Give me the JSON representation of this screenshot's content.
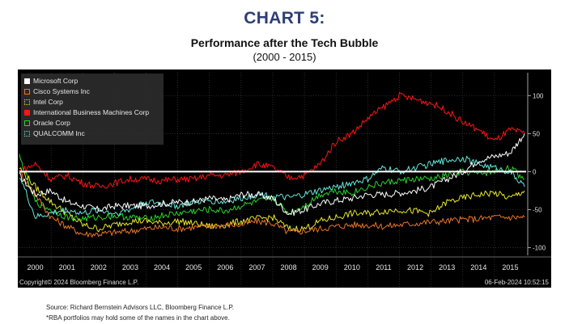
{
  "heading": "CHART 5:",
  "chart_data": {
    "type": "line",
    "title": "Performance after the Tech Bubble",
    "subtitle": "(2000 - 2015)",
    "xlabel": "",
    "ylabel": "",
    "x_tick_labels": [
      "2000",
      "2001",
      "2002",
      "2003",
      "2004",
      "2005",
      "2006",
      "2007",
      "2008",
      "2009",
      "2010",
      "2011",
      "2012",
      "2013",
      "2014",
      "2015"
    ],
    "y_ticks": [
      100,
      50,
      0,
      -50,
      -100
    ],
    "y_tick_labels": [
      "100",
      "50",
      "0",
      "-50",
      "-100"
    ],
    "ylim": [
      -110,
      130
    ],
    "xlim": [
      2000,
      2016
    ],
    "grid": true,
    "legend_position": "top-left",
    "copyright": "Copyright© 2024 Bloomberg Finance L.P.",
    "timestamp": "06-Feb-2024 10:52:15",
    "x_years": [
      2000.0,
      2000.5,
      2001.0,
      2001.5,
      2002.0,
      2002.5,
      2003.0,
      2003.5,
      2004.0,
      2004.5,
      2005.0,
      2005.5,
      2006.0,
      2006.5,
      2007.0,
      2007.5,
      2008.0,
      2008.5,
      2009.0,
      2009.5,
      2010.0,
      2010.5,
      2011.0,
      2011.5,
      2012.0,
      2012.5,
      2013.0,
      2013.5,
      2014.0,
      2014.5,
      2015.0,
      2015.5,
      2015.95
    ],
    "series": [
      {
        "name": "Microsoft Corp",
        "color": "#ffffff",
        "swatch_style": "solid",
        "values": [
          -5,
          -30,
          -25,
          -40,
          -45,
          -50,
          -45,
          -45,
          -45,
          -42,
          -40,
          -40,
          -35,
          -38,
          -30,
          -30,
          -35,
          -55,
          -50,
          -42,
          -38,
          -35,
          -30,
          -30,
          -28,
          -25,
          -20,
          -10,
          0,
          15,
          20,
          25,
          50
        ]
      },
      {
        "name": "Cisco Systems Inc",
        "color": "#e8742a",
        "swatch_style": "outline",
        "values": [
          0,
          -30,
          -60,
          -72,
          -82,
          -82,
          -80,
          -78,
          -75,
          -73,
          -75,
          -73,
          -72,
          -70,
          -70,
          -65,
          -68,
          -80,
          -78,
          -75,
          -72,
          -70,
          -70,
          -72,
          -70,
          -68,
          -66,
          -65,
          -63,
          -62,
          -60,
          -60,
          -60
        ]
      },
      {
        "name": "Intel Corp",
        "color": "#e6e62c",
        "swatch_style": "dotted",
        "values": [
          5,
          -20,
          -40,
          -55,
          -70,
          -75,
          -70,
          -65,
          -65,
          -68,
          -65,
          -68,
          -72,
          -70,
          -65,
          -62,
          -60,
          -75,
          -75,
          -65,
          -60,
          -55,
          -55,
          -52,
          -50,
          -52,
          -55,
          -40,
          -35,
          -30,
          -28,
          -35,
          -25
        ]
      },
      {
        "name": "International Business Machines Corp",
        "color": "#ff1414",
        "swatch_style": "solid",
        "values": [
          0,
          10,
          -10,
          -5,
          -15,
          -20,
          -15,
          -10,
          -10,
          -12,
          -10,
          -10,
          -5,
          -5,
          0,
          10,
          5,
          -8,
          -5,
          10,
          40,
          50,
          70,
          85,
          100,
          95,
          90,
          80,
          65,
          55,
          40,
          55,
          50
        ]
      },
      {
        "name": "Oracle Corp",
        "color": "#28d228",
        "swatch_style": "outline",
        "values": [
          20,
          -40,
          -50,
          -60,
          -62,
          -60,
          -58,
          -60,
          -62,
          -58,
          -55,
          -52,
          -50,
          -52,
          -45,
          -40,
          -35,
          -55,
          -45,
          -30,
          -25,
          -28,
          -20,
          -15,
          -12,
          -10,
          -10,
          -5,
          0,
          -3,
          0,
          5,
          -10
        ]
      },
      {
        "name": "QUALCOMM Inc",
        "color": "#66e6d8",
        "swatch_style": "dotted",
        "values": [
          -5,
          -60,
          -55,
          -50,
          -55,
          -50,
          -55,
          -50,
          -40,
          -42,
          -45,
          -40,
          -38,
          -40,
          -35,
          -30,
          -32,
          -35,
          -30,
          -25,
          -20,
          -15,
          -10,
          5,
          0,
          5,
          10,
          15,
          18,
          10,
          5,
          0,
          -20
        ]
      }
    ]
  },
  "source_note": "Source: Richard Bernstein Advisors LLC, Bloomberg Finance L.P.",
  "disclaimer_note": "*RBA portfolios may hold some of the names in the chart above."
}
